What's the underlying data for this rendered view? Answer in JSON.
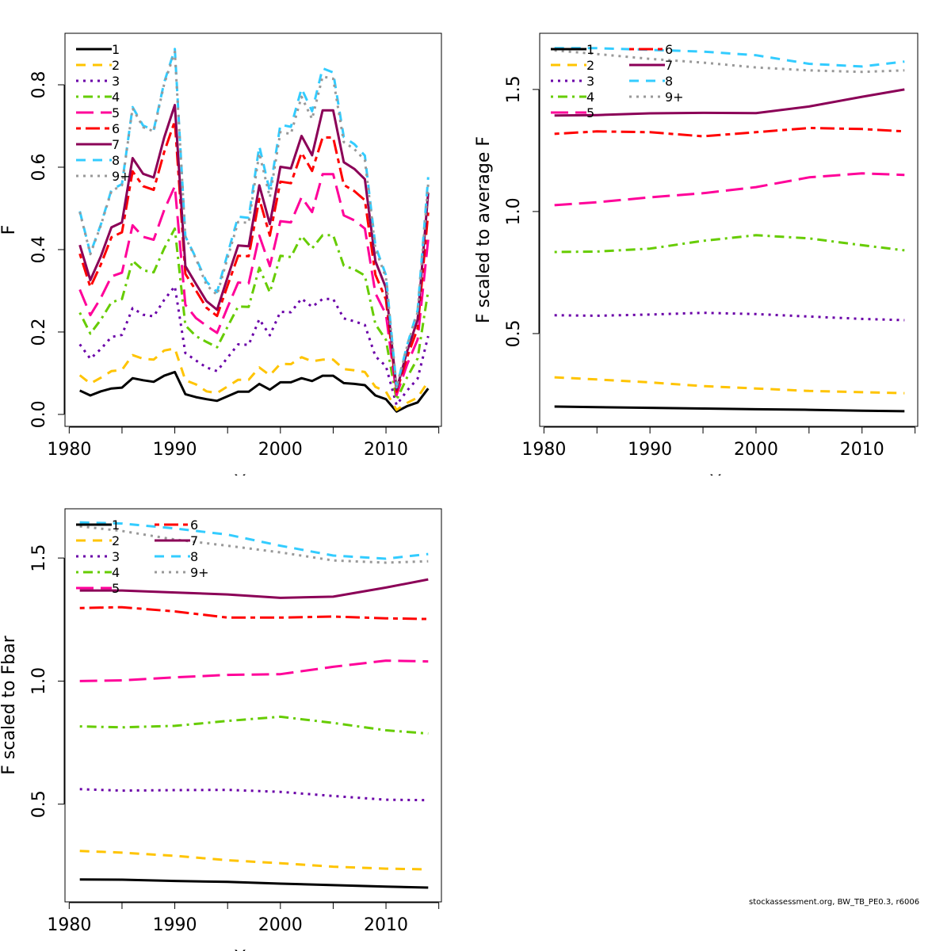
{
  "footnote": "stockassessment.org, BW_TB_PE0.3, r6006",
  "styles": {
    "1": {
      "color": "#000000",
      "dash": "solid"
    },
    "2": {
      "color": "#FFC400",
      "dash": "dashed"
    },
    "3": {
      "color": "#6A00A8",
      "dash": "dotted"
    },
    "4": {
      "color": "#66CC00",
      "dash": "dotdash"
    },
    "5": {
      "color": "#FF0099",
      "dash": "longdash"
    },
    "6": {
      "color": "#FF0000",
      "dash": "twodash"
    },
    "7": {
      "color": "#8B0057",
      "dash": "solid"
    },
    "8": {
      "color": "#33CCFF",
      "dash": "dashed"
    },
    "9+": {
      "color": "#999999",
      "dash": "dotted"
    }
  },
  "chart_data": [
    {
      "type": "line",
      "xlabel": "Year",
      "ylabel": "F",
      "xlim": [
        1979.6,
        2015.25
      ],
      "ylim": [
        -0.029,
        0.925
      ],
      "xticks": [
        1980,
        1985,
        1990,
        1995,
        2000,
        2005,
        2010,
        2015
      ],
      "xtick_labels": [
        "1980",
        "",
        "1990",
        "",
        "2000",
        "",
        "2010",
        ""
      ],
      "yticks": [
        0,
        0.2,
        0.4,
        0.6,
        0.8
      ],
      "ytick_labels": [
        "0.0",
        "0.2",
        "0.4",
        "0.6",
        "0.8"
      ],
      "legend": "top-left",
      "legend_columns": 1,
      "x": [
        1981,
        1982,
        1983,
        1984,
        1985,
        1986,
        1987,
        1988,
        1989,
        1990,
        1991,
        1992,
        1993,
        1994,
        1995,
        1996,
        1997,
        1998,
        1999,
        2000,
        2001,
        2002,
        2003,
        2004,
        2005,
        2006,
        2007,
        2008,
        2009,
        2010,
        2011,
        2012,
        2013,
        2014
      ],
      "series": [
        {
          "name": "1",
          "values": [
            0.058,
            0.046,
            0.056,
            0.063,
            0.065,
            0.088,
            0.083,
            0.079,
            0.094,
            0.103,
            0.049,
            0.042,
            0.037,
            0.033,
            0.044,
            0.055,
            0.055,
            0.074,
            0.06,
            0.078,
            0.078,
            0.088,
            0.081,
            0.094,
            0.094,
            0.076,
            0.074,
            0.071,
            0.046,
            0.037,
            0.007,
            0.02,
            0.029,
            0.063
          ]
        },
        {
          "name": "2",
          "values": [
            0.095,
            0.075,
            0.089,
            0.105,
            0.108,
            0.144,
            0.135,
            0.133,
            0.155,
            0.16,
            0.083,
            0.073,
            0.056,
            0.052,
            0.068,
            0.084,
            0.084,
            0.114,
            0.095,
            0.123,
            0.122,
            0.139,
            0.129,
            0.133,
            0.133,
            0.11,
            0.107,
            0.103,
            0.067,
            0.055,
            0.011,
            0.028,
            0.041,
            0.08
          ]
        },
        {
          "name": "3",
          "values": [
            0.17,
            0.135,
            0.159,
            0.188,
            0.193,
            0.258,
            0.242,
            0.238,
            0.278,
            0.311,
            0.149,
            0.131,
            0.114,
            0.105,
            0.138,
            0.17,
            0.169,
            0.231,
            0.192,
            0.249,
            0.248,
            0.281,
            0.261,
            0.28,
            0.28,
            0.233,
            0.226,
            0.217,
            0.141,
            0.117,
            0.023,
            0.058,
            0.087,
            0.19
          ]
        },
        {
          "name": "4",
          "values": [
            0.247,
            0.196,
            0.23,
            0.272,
            0.28,
            0.373,
            0.35,
            0.345,
            0.403,
            0.451,
            0.216,
            0.19,
            0.176,
            0.163,
            0.213,
            0.262,
            0.261,
            0.356,
            0.296,
            0.385,
            0.382,
            0.433,
            0.403,
            0.435,
            0.435,
            0.361,
            0.352,
            0.337,
            0.219,
            0.181,
            0.035,
            0.09,
            0.136,
            0.3
          ]
        },
        {
          "name": "5",
          "values": [
            0.303,
            0.241,
            0.283,
            0.335,
            0.344,
            0.459,
            0.431,
            0.424,
            0.496,
            0.554,
            0.266,
            0.234,
            0.215,
            0.198,
            0.26,
            0.32,
            0.318,
            0.434,
            0.36,
            0.469,
            0.466,
            0.527,
            0.491,
            0.583,
            0.583,
            0.483,
            0.471,
            0.451,
            0.294,
            0.243,
            0.047,
            0.121,
            0.182,
            0.425
          ]
        },
        {
          "name": "6",
          "values": [
            0.39,
            0.309,
            0.364,
            0.43,
            0.442,
            0.59,
            0.554,
            0.545,
            0.637,
            0.712,
            0.341,
            0.301,
            0.259,
            0.239,
            0.313,
            0.385,
            0.384,
            0.523,
            0.434,
            0.565,
            0.561,
            0.635,
            0.591,
            0.672,
            0.672,
            0.557,
            0.542,
            0.52,
            0.339,
            0.279,
            0.055,
            0.139,
            0.209,
            0.49
          ]
        },
        {
          "name": "7",
          "values": [
            0.411,
            0.326,
            0.384,
            0.454,
            0.466,
            0.622,
            0.584,
            0.575,
            0.672,
            0.751,
            0.36,
            0.317,
            0.275,
            0.254,
            0.333,
            0.41,
            0.408,
            0.556,
            0.462,
            0.601,
            0.597,
            0.676,
            0.629,
            0.738,
            0.738,
            0.612,
            0.596,
            0.571,
            0.372,
            0.307,
            0.06,
            0.153,
            0.23,
            0.538
          ]
        },
        {
          "name": "8",
          "values": [
            0.493,
            0.391,
            0.461,
            0.545,
            0.559,
            0.746,
            0.701,
            0.69,
            0.806,
            0.887,
            0.432,
            0.38,
            0.322,
            0.297,
            0.39,
            0.48,
            0.477,
            0.651,
            0.541,
            0.703,
            0.698,
            0.791,
            0.736,
            0.84,
            0.83,
            0.673,
            0.656,
            0.628,
            0.409,
            0.338,
            0.066,
            0.168,
            0.253,
            0.576
          ]
        },
        {
          "name": "9+",
          "values": [
            0.491,
            0.389,
            0.459,
            0.542,
            0.556,
            0.743,
            0.697,
            0.687,
            0.802,
            0.88,
            0.43,
            0.378,
            0.314,
            0.29,
            0.38,
            0.467,
            0.465,
            0.634,
            0.527,
            0.685,
            0.681,
            0.771,
            0.717,
            0.82,
            0.815,
            0.661,
            0.644,
            0.617,
            0.402,
            0.332,
            0.065,
            0.165,
            0.248,
            0.56
          ]
        }
      ]
    },
    {
      "type": "line",
      "xlabel": "Year",
      "ylabel": "F scaled to average F",
      "xlim": [
        1979.6,
        2015.25
      ],
      "ylim": [
        0.12,
        1.73
      ],
      "xticks": [
        1980,
        1985,
        1990,
        1995,
        2000,
        2005,
        2010,
        2015
      ],
      "xtick_labels": [
        "1980",
        "",
        "1990",
        "",
        "2000",
        "",
        "2010",
        ""
      ],
      "yticks": [
        0.5,
        1.0,
        1.5
      ],
      "ytick_labels": [
        "0.5",
        "1.0",
        "1.5"
      ],
      "legend": "top-left",
      "legend_columns": 2,
      "x": [
        1981,
        1985,
        1990,
        1995,
        2000,
        2005,
        2010,
        2014
      ],
      "series": [
        {
          "name": "1",
          "values": [
            0.201,
            0.199,
            0.196,
            0.193,
            0.19,
            0.188,
            0.184,
            0.182
          ]
        },
        {
          "name": "2",
          "values": [
            0.321,
            0.312,
            0.3,
            0.285,
            0.275,
            0.265,
            0.26,
            0.256
          ]
        },
        {
          "name": "3",
          "values": [
            0.575,
            0.573,
            0.578,
            0.585,
            0.58,
            0.57,
            0.56,
            0.555
          ]
        },
        {
          "name": "4",
          "values": [
            0.834,
            0.836,
            0.848,
            0.88,
            0.903,
            0.89,
            0.862,
            0.841
          ]
        },
        {
          "name": "5",
          "values": [
            1.026,
            1.038,
            1.058,
            1.075,
            1.1,
            1.14,
            1.156,
            1.15
          ]
        },
        {
          "name": "6",
          "values": [
            1.318,
            1.328,
            1.325,
            1.308,
            1.325,
            1.342,
            1.338,
            1.328
          ]
        },
        {
          "name": "7",
          "values": [
            1.393,
            1.395,
            1.402,
            1.404,
            1.403,
            1.43,
            1.47,
            1.5
          ]
        },
        {
          "name": "8",
          "values": [
            1.669,
            1.669,
            1.662,
            1.655,
            1.64,
            1.605,
            1.594,
            1.614
          ]
        },
        {
          "name": "9+",
          "values": [
            1.66,
            1.645,
            1.625,
            1.61,
            1.59,
            1.578,
            1.572,
            1.578
          ]
        }
      ]
    },
    {
      "type": "line",
      "xlabel": "Year",
      "ylabel": "F scaled to Fbar",
      "xlim": [
        1979.6,
        2015.25
      ],
      "ylim": [
        0.103,
        1.7
      ],
      "xticks": [
        1980,
        1985,
        1990,
        1995,
        2000,
        2005,
        2010,
        2015
      ],
      "xtick_labels": [
        "1980",
        "",
        "1990",
        "",
        "2000",
        "",
        "2010",
        ""
      ],
      "yticks": [
        0.5,
        1.0,
        1.5
      ],
      "ytick_labels": [
        "0.5",
        "1.0",
        "1.5"
      ],
      "legend": "top-left",
      "legend_columns": 2,
      "x": [
        1981,
        1985,
        1990,
        1995,
        2000,
        2005,
        2010,
        2014
      ],
      "series": [
        {
          "name": "1",
          "values": [
            0.194,
            0.193,
            0.188,
            0.184,
            0.177,
            0.171,
            0.165,
            0.161
          ]
        },
        {
          "name": "2",
          "values": [
            0.31,
            0.303,
            0.29,
            0.272,
            0.26,
            0.246,
            0.238,
            0.235
          ]
        },
        {
          "name": "3",
          "values": [
            0.561,
            0.555,
            0.557,
            0.558,
            0.55,
            0.533,
            0.518,
            0.516
          ]
        },
        {
          "name": "4",
          "values": [
            0.816,
            0.812,
            0.818,
            0.838,
            0.855,
            0.83,
            0.8,
            0.787
          ]
        },
        {
          "name": "5",
          "values": [
            1.0,
            1.003,
            1.015,
            1.025,
            1.028,
            1.058,
            1.083,
            1.08
          ]
        },
        {
          "name": "6",
          "values": [
            1.297,
            1.3,
            1.283,
            1.258,
            1.258,
            1.262,
            1.255,
            1.252
          ]
        },
        {
          "name": "7",
          "values": [
            1.368,
            1.368,
            1.36,
            1.352,
            1.338,
            1.343,
            1.38,
            1.413
          ]
        },
        {
          "name": "8",
          "values": [
            1.645,
            1.64,
            1.62,
            1.595,
            1.55,
            1.51,
            1.497,
            1.516
          ]
        },
        {
          "name": "9+",
          "values": [
            1.629,
            1.61,
            1.575,
            1.55,
            1.523,
            1.49,
            1.481,
            1.487
          ]
        }
      ]
    }
  ]
}
